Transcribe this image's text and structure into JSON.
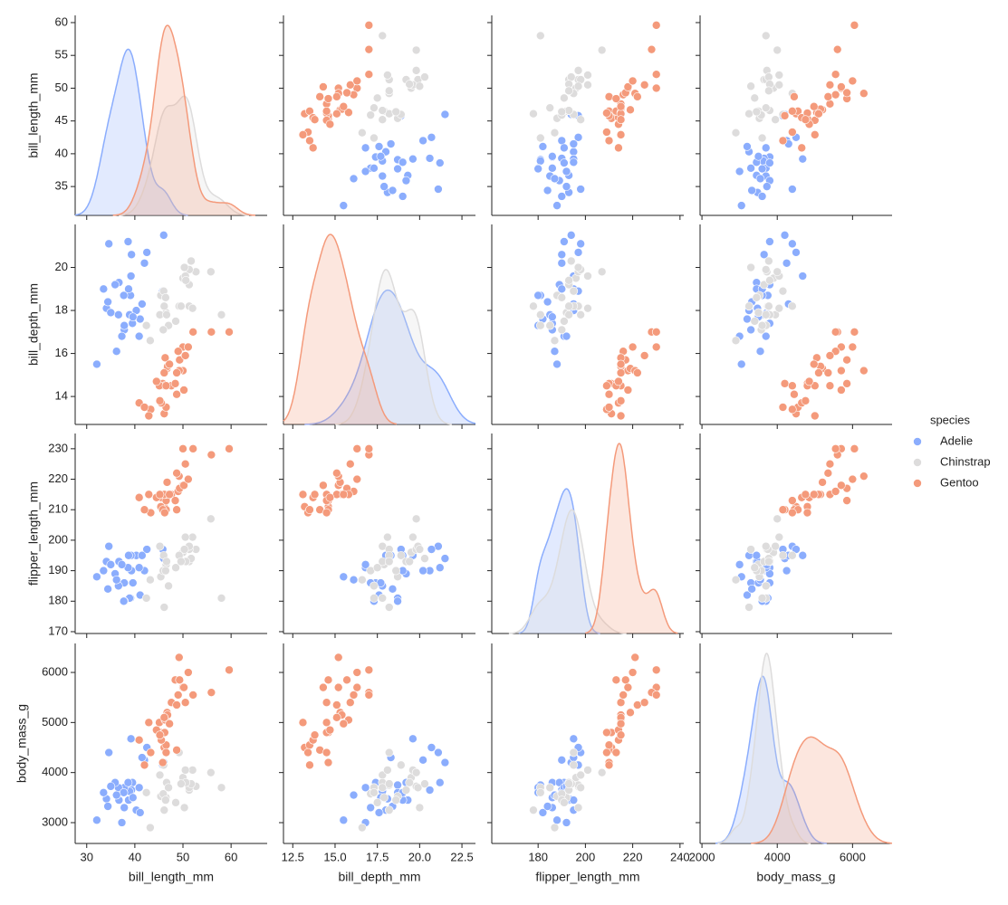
{
  "chart_data": {
    "type": "pairplot",
    "variables": [
      "bill_length_mm",
      "bill_depth_mm",
      "flipper_length_mm",
      "body_mass_g"
    ],
    "axes": [
      {
        "xlim": [
          27.6,
          67.5
        ],
        "xticks": [
          30,
          40,
          50,
          60
        ],
        "ylim": [
          30.6,
          61.1
        ],
        "yticks": [
          35,
          40,
          45,
          50,
          55,
          60
        ]
      },
      {
        "xlim": [
          11.95,
          23.3
        ],
        "xticks": [
          12.5,
          {
            "value": 15,
            "label": "15.0"
          },
          17.5,
          {
            "value": 20,
            "label": "20.0"
          },
          22.5
        ],
        "ylim": [
          12.7,
          22.0
        ],
        "yticks": [
          14,
          16,
          18,
          20
        ]
      },
      {
        "xlim": [
          160.4,
          241.6
        ],
        "xticks": [
          180,
          200,
          220,
          240
        ],
        "ylim": [
          169.4,
          235
        ],
        "yticks": [
          170,
          180,
          190,
          200,
          210,
          220,
          230
        ]
      },
      {
        "xlim": [
          1950,
          7050
        ],
        "xticks": [
          2000,
          4000,
          6000
        ],
        "ylim": [
          2584,
          6579
        ],
        "yticks": [
          3000,
          4000,
          5000,
          6000
        ]
      }
    ],
    "legend_title": "species",
    "legend": "right",
    "series": [
      {
        "name": "Adelie",
        "color": "#8badfd",
        "values": [
          [
            39.1,
            18.7,
            181,
            3750
          ],
          [
            39.5,
            17.4,
            186,
            3800
          ],
          [
            40.3,
            18.0,
            195,
            3250
          ],
          [
            36.7,
            19.3,
            193,
            3450
          ],
          [
            39.3,
            20.6,
            190,
            3650
          ],
          [
            38.9,
            17.8,
            181,
            3625
          ],
          [
            39.2,
            19.6,
            195,
            4675
          ],
          [
            34.1,
            18.1,
            193,
            3475
          ],
          [
            42.0,
            20.2,
            190,
            4250
          ],
          [
            37.8,
            17.1,
            186,
            3300
          ],
          [
            37.8,
            17.3,
            180,
            3700
          ],
          [
            41.1,
            17.6,
            182,
            3200
          ],
          [
            38.6,
            21.2,
            191,
            3800
          ],
          [
            34.6,
            21.1,
            198,
            4400
          ],
          [
            36.6,
            17.8,
            185,
            3700
          ],
          [
            38.7,
            19.0,
            195,
            3450
          ],
          [
            42.5,
            20.7,
            197,
            4500
          ],
          [
            34.4,
            18.4,
            184,
            3325
          ],
          [
            46.0,
            21.5,
            194,
            4200
          ],
          [
            37.7,
            18.7,
            180,
            3600
          ],
          [
            35.9,
            19.2,
            189,
            3800
          ],
          [
            33.5,
            19.0,
            190,
            3600
          ],
          [
            39.6,
            17.7,
            186,
            3500
          ],
          [
            45.8,
            18.9,
            197,
            4150
          ],
          [
            32.1,
            15.5,
            188,
            3050
          ],
          [
            40.9,
            16.8,
            191,
            3700
          ],
          [
            37.3,
            16.8,
            192,
            3000
          ],
          [
            36.2,
            16.1,
            187,
            3550
          ],
          [
            41.5,
            18.3,
            195,
            4300
          ],
          [
            35.0,
            17.9,
            192,
            3725
          ]
        ]
      },
      {
        "name": "Chinstrap",
        "color": "#dddcdc",
        "values": [
          [
            46.5,
            17.9,
            192,
            3500
          ],
          [
            50.0,
            19.5,
            196,
            3900
          ],
          [
            51.3,
            19.2,
            193,
            3650
          ],
          [
            45.4,
            18.7,
            188,
            3525
          ],
          [
            52.7,
            19.8,
            197,
            3725
          ],
          [
            45.2,
            17.8,
            198,
            3950
          ],
          [
            46.1,
            18.2,
            178,
            3250
          ],
          [
            51.3,
            18.2,
            197,
            3750
          ],
          [
            46.0,
            18.9,
            195,
            4150
          ],
          [
            51.3,
            19.9,
            198,
            3700
          ],
          [
            46.6,
            17.8,
            193,
            3800
          ],
          [
            51.7,
            20.3,
            194,
            3775
          ],
          [
            47.0,
            17.3,
            185,
            3700
          ],
          [
            52.0,
            18.1,
            201,
            4050
          ],
          [
            45.9,
            17.1,
            190,
            3575
          ],
          [
            50.5,
            19.6,
            201,
            4050
          ],
          [
            50.3,
            20.0,
            197,
            3300
          ],
          [
            58.0,
            17.8,
            181,
            3700
          ],
          [
            46.4,
            18.6,
            190,
            3450
          ],
          [
            49.2,
            18.2,
            195,
            4400
          ],
          [
            42.4,
            17.3,
            181,
            3600
          ],
          [
            48.5,
            17.5,
            191,
            3400
          ],
          [
            43.2,
            16.6,
            187,
            2900
          ],
          [
            50.6,
            19.4,
            193,
            3800
          ],
          [
            55.8,
            19.8,
            207,
            4000
          ],
          [
            49.6,
            18.2,
            193,
            3775
          ]
        ]
      },
      {
        "name": "Gentoo",
        "color": "#f49a7b",
        "values": [
          [
            46.1,
            13.2,
            211,
            4500
          ],
          [
            50.0,
            16.3,
            230,
            5700
          ],
          [
            48.7,
            14.1,
            210,
            4450
          ],
          [
            50.0,
            15.2,
            218,
            5700
          ],
          [
            47.6,
            14.5,
            215,
            5400
          ],
          [
            46.5,
            13.5,
            210,
            4550
          ],
          [
            45.4,
            14.6,
            211,
            4800
          ],
          [
            46.7,
            15.3,
            219,
            5200
          ],
          [
            43.3,
            13.4,
            209,
            4400
          ],
          [
            46.8,
            15.4,
            215,
            5150
          ],
          [
            40.9,
            13.7,
            214,
            4650
          ],
          [
            49.0,
            16.1,
            216,
            5550
          ],
          [
            45.5,
            13.7,
            214,
            4650
          ],
          [
            48.4,
            14.6,
            213,
            5850
          ],
          [
            45.8,
            14.6,
            210,
            4200
          ],
          [
            49.3,
            15.7,
            217,
            5850
          ],
          [
            42.0,
            13.5,
            210,
            4150
          ],
          [
            49.2,
            15.2,
            221,
            6300
          ],
          [
            46.2,
            14.5,
            209,
            4800
          ],
          [
            48.7,
            15.1,
            222,
            5350
          ],
          [
            50.2,
            14.3,
            218,
            5700
          ],
          [
            45.1,
            14.5,
            215,
            5000
          ],
          [
            46.5,
            14.5,
            213,
            4400
          ],
          [
            46.3,
            15.8,
            215,
            5050
          ],
          [
            42.9,
            13.1,
            215,
            5000
          ],
          [
            46.1,
            15.1,
            215,
            5100
          ],
          [
            59.6,
            17.0,
            230,
            6050
          ],
          [
            55.9,
            17.0,
            228,
            5600
          ],
          [
            52.1,
            17.0,
            230,
            5550
          ],
          [
            44.5,
            14.7,
            214,
            4850
          ],
          [
            47.2,
            15.5,
            215,
            4975
          ],
          [
            50.5,
            15.9,
            225,
            5400
          ],
          [
            51.1,
            16.3,
            220,
            6000
          ],
          [
            45.2,
            13.8,
            215,
            4750
          ]
        ]
      }
    ]
  }
}
